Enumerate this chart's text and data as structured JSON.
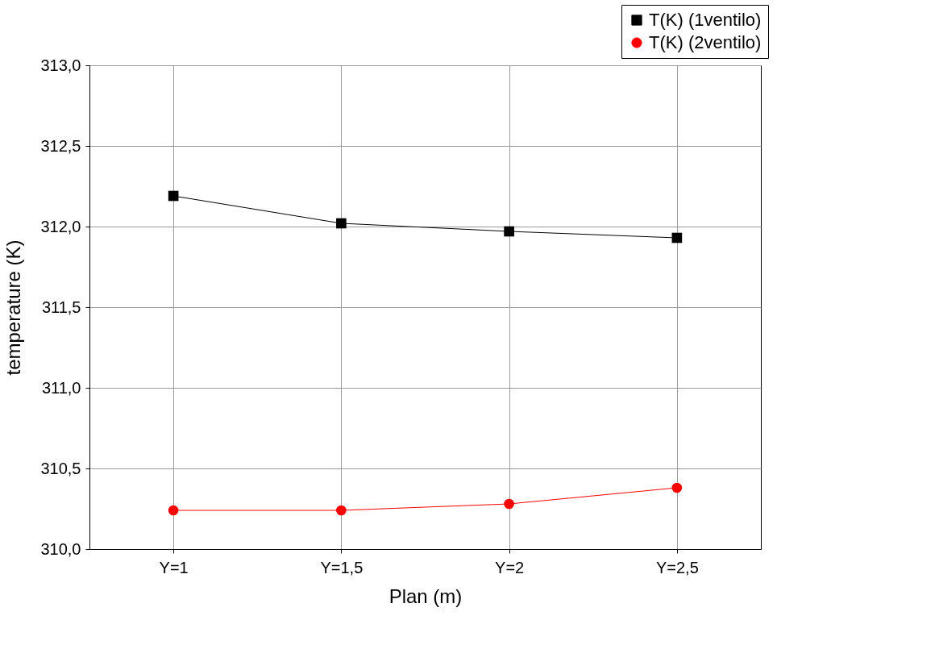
{
  "chart_data": {
    "type": "line",
    "xlabel": "Plan (m)",
    "ylabel": "temperature (K)",
    "categories": [
      "Y=1",
      "Y=1,5",
      "Y=2",
      "Y=2,5"
    ],
    "series": [
      {
        "name": "T(K) (1ventilo)",
        "color": "#000000",
        "marker": "square",
        "values": [
          312.19,
          312.02,
          311.97,
          311.93
        ]
      },
      {
        "name": "T(K) (2ventilo)",
        "color": "#ff0000",
        "marker": "circle",
        "values": [
          310.24,
          310.24,
          310.28,
          310.38
        ]
      }
    ],
    "ylim": [
      310.0,
      313.0
    ],
    "yticks": [
      {
        "value": 310.0,
        "label": "310,0"
      },
      {
        "value": 310.5,
        "label": "310,5"
      },
      {
        "value": 311.0,
        "label": "311,0"
      },
      {
        "value": 311.5,
        "label": "311,5"
      },
      {
        "value": 312.0,
        "label": "312,0"
      },
      {
        "value": 312.5,
        "label": "312,5"
      },
      {
        "value": 313.0,
        "label": "313,0"
      }
    ],
    "grid": true,
    "legend": "top right",
    "line_style": "solid"
  }
}
